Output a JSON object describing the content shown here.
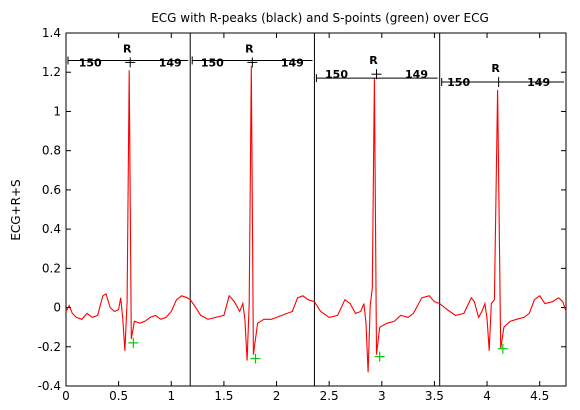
{
  "chart_data": {
    "type": "line",
    "title": "ECG with R-peaks (black) and S-points (green) over ECG",
    "xlabel": "",
    "ylabel": "ECG+R+S",
    "xlim": [
      0,
      4.75
    ],
    "ylim": [
      -0.4,
      1.4
    ],
    "xticks": [
      0,
      0.5,
      1,
      1.5,
      2,
      2.5,
      3,
      3.5,
      4,
      4.5
    ],
    "xtick_labels": [
      "0",
      "0.5",
      "1",
      "1.5",
      "2",
      "2.5",
      "3",
      "3.5",
      "4",
      "4.5"
    ],
    "yticks": [
      -0.4,
      -0.2,
      0,
      0.2,
      0.4,
      0.6,
      0.8,
      1,
      1.2,
      1.4
    ],
    "ytick_labels": [
      "-0.4",
      "-0.2",
      "0",
      "0.2",
      "0.4",
      "0.6",
      "0.8",
      "1",
      "1.2",
      "1.4"
    ],
    "grid": false,
    "colors": {
      "ecg": "#ff0000",
      "r_peak": "#000000",
      "s_point": "#00cc00",
      "boundary": "#000000"
    },
    "segment_boundaries": [
      1.18,
      2.36,
      3.55
    ],
    "ecg_baseline": [
      [
        0.0,
        -0.02
      ],
      [
        0.03,
        0.01
      ],
      [
        0.06,
        -0.03
      ],
      [
        0.1,
        -0.05
      ],
      [
        0.15,
        -0.06
      ],
      [
        0.2,
        -0.03
      ],
      [
        0.25,
        -0.05
      ],
      [
        0.3,
        -0.04
      ],
      [
        0.35,
        0.06
      ],
      [
        0.38,
        0.07
      ],
      [
        0.42,
        0.0
      ],
      [
        0.46,
        -0.02
      ],
      [
        0.5,
        -0.01
      ],
      [
        0.52,
        0.05
      ],
      [
        0.54,
        -0.06
      ],
      [
        0.56,
        -0.22
      ],
      [
        0.58,
        0.03
      ],
      [
        0.6,
        1.21
      ],
      [
        0.62,
        -0.16
      ],
      [
        0.65,
        -0.07
      ],
      [
        0.7,
        -0.08
      ],
      [
        0.75,
        -0.07
      ],
      [
        0.8,
        -0.05
      ],
      [
        0.85,
        -0.04
      ],
      [
        0.9,
        -0.06
      ],
      [
        0.95,
        -0.05
      ],
      [
        1.0,
        -0.02
      ],
      [
        1.05,
        0.04
      ],
      [
        1.1,
        0.06
      ],
      [
        1.15,
        0.05
      ],
      [
        1.18,
        0.04
      ],
      [
        1.22,
        0.01
      ],
      [
        1.28,
        -0.04
      ],
      [
        1.35,
        -0.06
      ],
      [
        1.42,
        -0.05
      ],
      [
        1.5,
        -0.04
      ],
      [
        1.55,
        0.06
      ],
      [
        1.6,
        0.03
      ],
      [
        1.65,
        -0.02
      ],
      [
        1.68,
        0.02
      ],
      [
        1.7,
        -0.06
      ],
      [
        1.72,
        -0.27
      ],
      [
        1.74,
        0.02
      ],
      [
        1.76,
        1.23
      ],
      [
        1.78,
        -0.24
      ],
      [
        1.82,
        -0.08
      ],
      [
        1.88,
        -0.06
      ],
      [
        1.95,
        -0.06
      ],
      [
        2.0,
        -0.05
      ],
      [
        2.05,
        -0.04
      ],
      [
        2.1,
        -0.03
      ],
      [
        2.15,
        -0.02
      ],
      [
        2.2,
        0.05
      ],
      [
        2.25,
        0.06
      ],
      [
        2.3,
        0.04
      ],
      [
        2.36,
        0.03
      ],
      [
        2.42,
        -0.02
      ],
      [
        2.5,
        -0.05
      ],
      [
        2.58,
        -0.04
      ],
      [
        2.65,
        0.04
      ],
      [
        2.7,
        0.02
      ],
      [
        2.75,
        -0.03
      ],
      [
        2.8,
        -0.02
      ],
      [
        2.83,
        0.02
      ],
      [
        2.85,
        -0.08
      ],
      [
        2.87,
        -0.33
      ],
      [
        2.89,
        0.01
      ],
      [
        2.91,
        0.1
      ],
      [
        2.93,
        1.17
      ],
      [
        2.95,
        -0.24
      ],
      [
        2.98,
        -0.1
      ],
      [
        3.05,
        -0.08
      ],
      [
        3.12,
        -0.07
      ],
      [
        3.18,
        -0.04
      ],
      [
        3.25,
        -0.05
      ],
      [
        3.3,
        -0.03
      ],
      [
        3.38,
        0.05
      ],
      [
        3.45,
        0.06
      ],
      [
        3.5,
        0.03
      ],
      [
        3.55,
        0.02
      ],
      [
        3.62,
        -0.01
      ],
      [
        3.7,
        -0.04
      ],
      [
        3.78,
        -0.03
      ],
      [
        3.85,
        0.05
      ],
      [
        3.88,
        0.03
      ],
      [
        3.92,
        -0.05
      ],
      [
        3.95,
        -0.02
      ],
      [
        3.98,
        0.02
      ],
      [
        4.0,
        -0.06
      ],
      [
        4.02,
        -0.22
      ],
      [
        4.04,
        0.02
      ],
      [
        4.07,
        0.04
      ],
      [
        4.1,
        1.11
      ],
      [
        4.13,
        -0.21
      ],
      [
        4.16,
        -0.1
      ],
      [
        4.22,
        -0.07
      ],
      [
        4.28,
        -0.06
      ],
      [
        4.35,
        -0.05
      ],
      [
        4.4,
        -0.03
      ],
      [
        4.45,
        0.04
      ],
      [
        4.5,
        0.06
      ],
      [
        4.55,
        0.02
      ],
      [
        4.62,
        0.03
      ],
      [
        4.68,
        0.05
      ],
      [
        4.72,
        0.03
      ],
      [
        4.75,
        -0.02
      ]
    ],
    "r_peaks": [
      {
        "x": 0.61,
        "y": 1.25,
        "label": "R",
        "left": "150",
        "right": "149"
      },
      {
        "x": 1.77,
        "y": 1.25,
        "label": "R",
        "left": "150",
        "right": "149"
      },
      {
        "x": 2.95,
        "y": 1.19,
        "label": "R",
        "left": "150",
        "right": "149"
      },
      {
        "x": 4.11,
        "y": 1.15,
        "label": "R",
        "left": "150",
        "right": "149"
      }
    ],
    "rr_lines": [
      {
        "x0": 0.0,
        "x1": 1.18,
        "y": 1.26
      },
      {
        "x0": 1.18,
        "x1": 2.36,
        "y": 1.26
      },
      {
        "x0": 2.36,
        "x1": 3.55,
        "y": 1.17
      },
      {
        "x0": 3.55,
        "x1": 4.75,
        "y": 1.15
      }
    ],
    "s_points": [
      {
        "x": 0.64,
        "y": -0.18
      },
      {
        "x": 1.8,
        "y": -0.26
      },
      {
        "x": 2.98,
        "y": -0.25
      },
      {
        "x": 4.15,
        "y": -0.21
      }
    ]
  }
}
